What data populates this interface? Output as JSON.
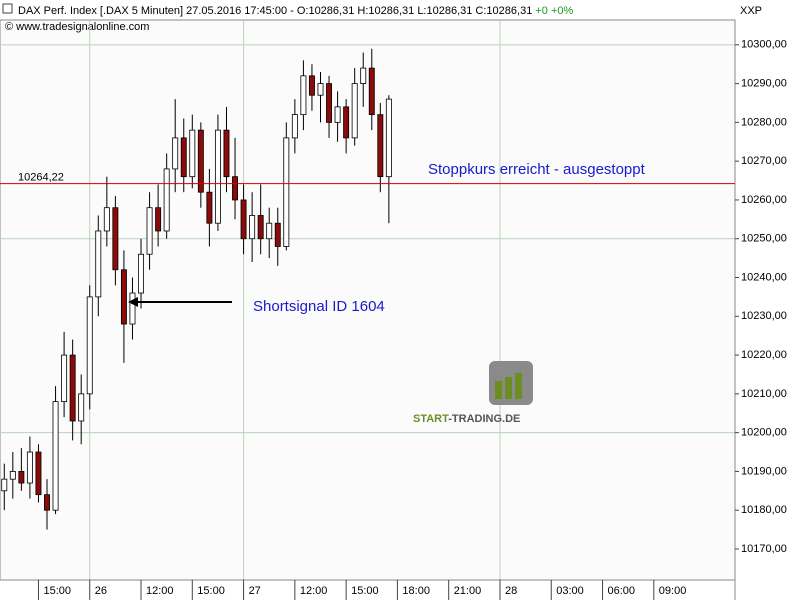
{
  "chart_data": {
    "type": "candlestick",
    "title": "DAX Perf. Index [.DAX  5 Minuten] 27.05.2016 17:45:00 - O:10286,31 H:10286,31 L:10286,31 C:10286,31",
    "change": "+0 +0%",
    "subtitle": "© www.tradesignalonline.com",
    "axis_label": "XXP",
    "categories": [
      null,
      null,
      null,
      null,
      "15:00",
      null,
      null,
      null,
      null,
      null,
      "26",
      null,
      null,
      null,
      null,
      null,
      "12:00",
      null,
      null,
      null,
      null,
      null,
      "15:00",
      null,
      null,
      null,
      null,
      null,
      "27",
      null,
      null,
      null,
      null,
      null,
      "12:00",
      null,
      null,
      null,
      null,
      null,
      "15:00",
      null,
      null,
      null,
      null,
      null,
      "18:00",
      null,
      null,
      null,
      null,
      null,
      "21:00",
      null,
      null,
      null,
      null,
      null,
      "28",
      null,
      null,
      null,
      null,
      null,
      "03:00",
      null,
      null,
      null,
      null,
      null,
      "06:00",
      null,
      null,
      null,
      null,
      null,
      "09:00",
      null,
      null,
      null,
      null,
      null,
      null,
      null,
      null,
      null
    ],
    "open": [
      10185,
      10188,
      10190,
      10187,
      10195,
      10184,
      10180,
      10208,
      10220,
      10203,
      10210,
      10235,
      10252,
      10258,
      10242,
      10228,
      10236,
      10246,
      10258,
      10252,
      10268,
      10276,
      10266,
      10278,
      10262,
      10254,
      10278,
      10266,
      10260,
      10250,
      10256,
      10250,
      10254,
      10248,
      10276,
      10282,
      10292,
      10287,
      10290,
      10280,
      10284,
      10276,
      10290,
      10294,
      10282,
      10266,
      null,
      null,
      null,
      null,
      null,
      null,
      null,
      null,
      null,
      null,
      null,
      null,
      null,
      null,
      null,
      null,
      null,
      null,
      null,
      null,
      null,
      null,
      null,
      null,
      null,
      null,
      null,
      null,
      null,
      null,
      null,
      null,
      null,
      null,
      null,
      null,
      null,
      null,
      null,
      null
    ],
    "high": [
      10192,
      10195,
      10196,
      10199,
      10197,
      10188,
      10212,
      10226,
      10224,
      10215,
      10238,
      10256,
      10266,
      10261,
      10247,
      10240,
      10250,
      10262,
      10264,
      10272,
      10286,
      10281,
      10282,
      10280,
      10268,
      10282,
      10284,
      10276,
      10264,
      10262,
      10264,
      10258,
      10258,
      10280,
      10286,
      10296,
      10295,
      10293,
      10292,
      10288,
      10286,
      10294,
      10298,
      10299,
      10285,
      10287,
      null,
      null,
      null,
      null,
      null,
      null,
      null,
      null,
      null,
      null,
      null,
      null,
      null,
      null,
      null,
      null,
      null,
      null,
      null,
      null,
      null,
      null,
      null,
      null,
      null,
      null,
      null,
      null,
      null,
      null,
      null,
      null,
      null,
      null,
      null,
      null,
      null,
      null,
      null,
      null
    ],
    "low": [
      10180,
      10183,
      10185,
      10183,
      10182,
      10175,
      10179,
      10204,
      10198,
      10197,
      10206,
      10230,
      10248,
      10238,
      10218,
      10224,
      10232,
      10242,
      10248,
      10250,
      10262,
      10262,
      10263,
      10258,
      10248,
      10252,
      10262,
      10255,
      10246,
      10244,
      10246,
      10245,
      10243,
      10247,
      10272,
      10278,
      10283,
      10280,
      10276,
      10275,
      10272,
      10274,
      10284,
      10278,
      10262,
      10254,
      null,
      null,
      null,
      null,
      null,
      null,
      null,
      null,
      null,
      null,
      null,
      null,
      null,
      null,
      null,
      null,
      null,
      null,
      null,
      null,
      null,
      null,
      null,
      null,
      null,
      null,
      null,
      null,
      null,
      null,
      null,
      null,
      null,
      null,
      null,
      null,
      null,
      null,
      null,
      null
    ],
    "close": [
      10188,
      10190,
      10187,
      10195,
      10184,
      10180,
      10208,
      10220,
      10203,
      10210,
      10235,
      10252,
      10258,
      10242,
      10228,
      10236,
      10246,
      10258,
      10252,
      10268,
      10276,
      10266,
      10278,
      10262,
      10254,
      10278,
      10266,
      10260,
      10250,
      10256,
      10250,
      10254,
      10248,
      10276,
      10282,
      10292,
      10287,
      10290,
      10280,
      10284,
      10276,
      10290,
      10294,
      10282,
      10266,
      10286,
      null,
      null,
      null,
      null,
      null,
      null,
      null,
      null,
      null,
      null,
      null,
      null,
      null,
      null,
      null,
      null,
      null,
      null,
      null,
      null,
      null,
      null,
      null,
      null,
      null,
      null,
      null,
      null,
      null,
      null,
      null,
      null,
      null,
      null,
      null,
      null,
      null,
      null,
      null,
      null
    ],
    "up_color": "#ffffff",
    "down_color": "#8b0a0a",
    "ylim": [
      10162,
      10306.4
    ],
    "yticks": [
      {
        "value": 10170,
        "label": "10170,00"
      },
      {
        "value": 10180,
        "label": "10180,00"
      },
      {
        "value": 10190,
        "label": "10190,00"
      },
      {
        "value": 10200,
        "label": "10200,00"
      },
      {
        "value": 10210,
        "label": "10210,00"
      },
      {
        "value": 10220,
        "label": "10220,00"
      },
      {
        "value": 10230,
        "label": "10230,00"
      },
      {
        "value": 10240,
        "label": "10240,00"
      },
      {
        "value": 10250,
        "label": "10250,00"
      },
      {
        "value": 10260,
        "label": "10260,00"
      },
      {
        "value": 10270,
        "label": "10270,00"
      },
      {
        "value": 10280,
        "label": "10280,00"
      },
      {
        "value": 10290,
        "label": "10290,00"
      },
      {
        "value": 10300,
        "label": "10300,00"
      }
    ],
    "ygrid": [
      10200,
      10250,
      10300
    ],
    "stop_level": {
      "value": 10264.22,
      "label": "10264,22",
      "color": "#d00000"
    },
    "annotations": [
      {
        "text": "Stoppkurs erreicht - ausgestoppt"
      },
      {
        "text": "Shortsignal ID 1604"
      }
    ],
    "logo": {
      "text1": "START",
      "text2": "-TRADING.DE"
    }
  }
}
